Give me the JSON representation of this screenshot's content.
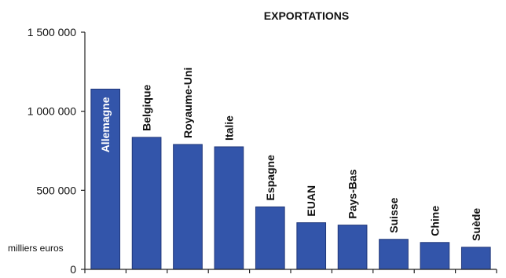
{
  "chart_data": {
    "type": "bar",
    "title": "EXPORTATIONS",
    "unit_label": "milliers euros",
    "categories": [
      "Allemagne",
      "Belgique",
      "Royaume-Uni",
      "Italie",
      "Espagne",
      "EUAN",
      "Pays-Bas",
      "Suisse",
      "Chine",
      "Suède"
    ],
    "values": [
      1140000,
      835000,
      790000,
      775000,
      395000,
      295000,
      280000,
      190000,
      170000,
      140000
    ],
    "ylim": [
      0,
      1500000
    ],
    "yticks": [
      {
        "value": 1500000,
        "label": "1 500 000"
      },
      {
        "value": 1000000,
        "label": "1 000 000"
      },
      {
        "value": 500000,
        "label": "500 000"
      },
      {
        "value": 0,
        "label": "0"
      }
    ],
    "grid": false,
    "colors": {
      "bar": "#3355aa",
      "bar_edge": "#20377a"
    }
  }
}
